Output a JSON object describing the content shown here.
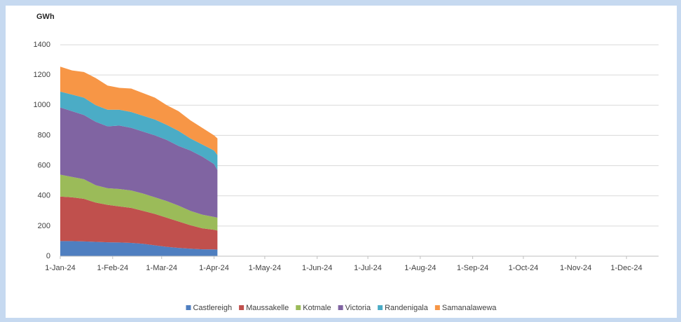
{
  "chart_data": {
    "type": "stacked_area",
    "y_axis_title": "GWh",
    "x": [
      "2024-01-01",
      "2024-01-08",
      "2024-01-15",
      "2024-01-22",
      "2024-01-29",
      "2024-02-05",
      "2024-02-12",
      "2024-02-19",
      "2024-02-26",
      "2024-03-04",
      "2024-03-11",
      "2024-03-18",
      "2024-03-25",
      "2024-04-01",
      "2024-04-03"
    ],
    "series": [
      {
        "name": "Castlereigh",
        "color": "#4f7fc0",
        "values": [
          100,
          100,
          98,
          95,
          92,
          91,
          88,
          82,
          72,
          62,
          55,
          50,
          46,
          45,
          44
        ]
      },
      {
        "name": "Maussakelle",
        "color": "#c0504d",
        "values": [
          295,
          290,
          282,
          260,
          248,
          239,
          232,
          218,
          208,
          193,
          175,
          155,
          139,
          130,
          126
        ]
      },
      {
        "name": "Kotmale",
        "color": "#9bbb59",
        "values": [
          145,
          135,
          130,
          115,
          110,
          115,
          115,
          115,
          110,
          110,
          105,
          95,
          90,
          85,
          85
        ]
      },
      {
        "name": "Victoria",
        "color": "#8064a2",
        "values": [
          445,
          435,
          425,
          420,
          410,
          420,
          415,
          410,
          410,
          405,
          395,
          400,
          385,
          350,
          315
        ]
      },
      {
        "name": "Randenigala",
        "color": "#4bacc6",
        "values": [
          105,
          110,
          115,
          110,
          110,
          105,
          105,
          105,
          105,
          100,
          100,
          80,
          80,
          90,
          100
        ]
      },
      {
        "name": "Samanalawewa",
        "color": "#f79646",
        "values": [
          165,
          160,
          170,
          180,
          160,
          145,
          155,
          150,
          145,
          130,
          130,
          120,
          110,
          100,
          110
        ]
      }
    ],
    "xlim": [
      "2024-01-01",
      "2024-12-20"
    ],
    "xticks": [
      {
        "value": "2024-01-01",
        "label": "1-Jan-24"
      },
      {
        "value": "2024-02-01",
        "label": "1-Feb-24"
      },
      {
        "value": "2024-03-01",
        "label": "1-Mar-24"
      },
      {
        "value": "2024-04-01",
        "label": "1-Apr-24"
      },
      {
        "value": "2024-05-01",
        "label": "1-May-24"
      },
      {
        "value": "2024-06-01",
        "label": "1-Jun-24"
      },
      {
        "value": "2024-07-01",
        "label": "1-Jul-24"
      },
      {
        "value": "2024-08-01",
        "label": "1-Aug-24"
      },
      {
        "value": "2024-09-01",
        "label": "1-Sep-24"
      },
      {
        "value": "2024-10-01",
        "label": "1-Oct-24"
      },
      {
        "value": "2024-11-01",
        "label": "1-Nov-24"
      },
      {
        "value": "2024-12-01",
        "label": "1-Dec-24"
      }
    ],
    "ylim": [
      0,
      1400
    ],
    "yticks": [
      0,
      200,
      400,
      600,
      800,
      1000,
      1200,
      1400
    ],
    "grid": true,
    "legend": "bottom"
  }
}
